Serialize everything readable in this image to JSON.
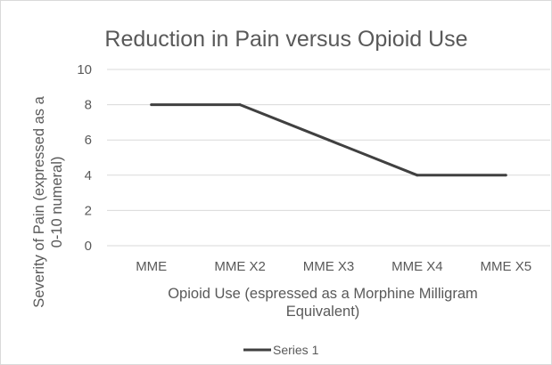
{
  "chart_data": {
    "type": "line",
    "title": "Reduction in Pain versus Opioid Use",
    "categories": [
      "MME",
      "MME X2",
      "MME X3",
      "MME X4",
      "MME X5"
    ],
    "series": [
      {
        "name": "Series 1",
        "values": [
          8,
          8,
          6,
          4,
          4
        ],
        "color": "#404040"
      }
    ],
    "xlabel_lines": [
      "Opioid Use (espressed as a Morphine Milligram",
      "Equivalent)"
    ],
    "ylabel_lines": [
      "Severity of Pain (expressed as a",
      "0-10 numeral)"
    ],
    "ylim": [
      0,
      10
    ],
    "yticks": [
      "0",
      "2",
      "4",
      "6",
      "8",
      "10"
    ],
    "grid": true,
    "gridline_color": "#d9d9d9",
    "legend_position": "bottom"
  }
}
